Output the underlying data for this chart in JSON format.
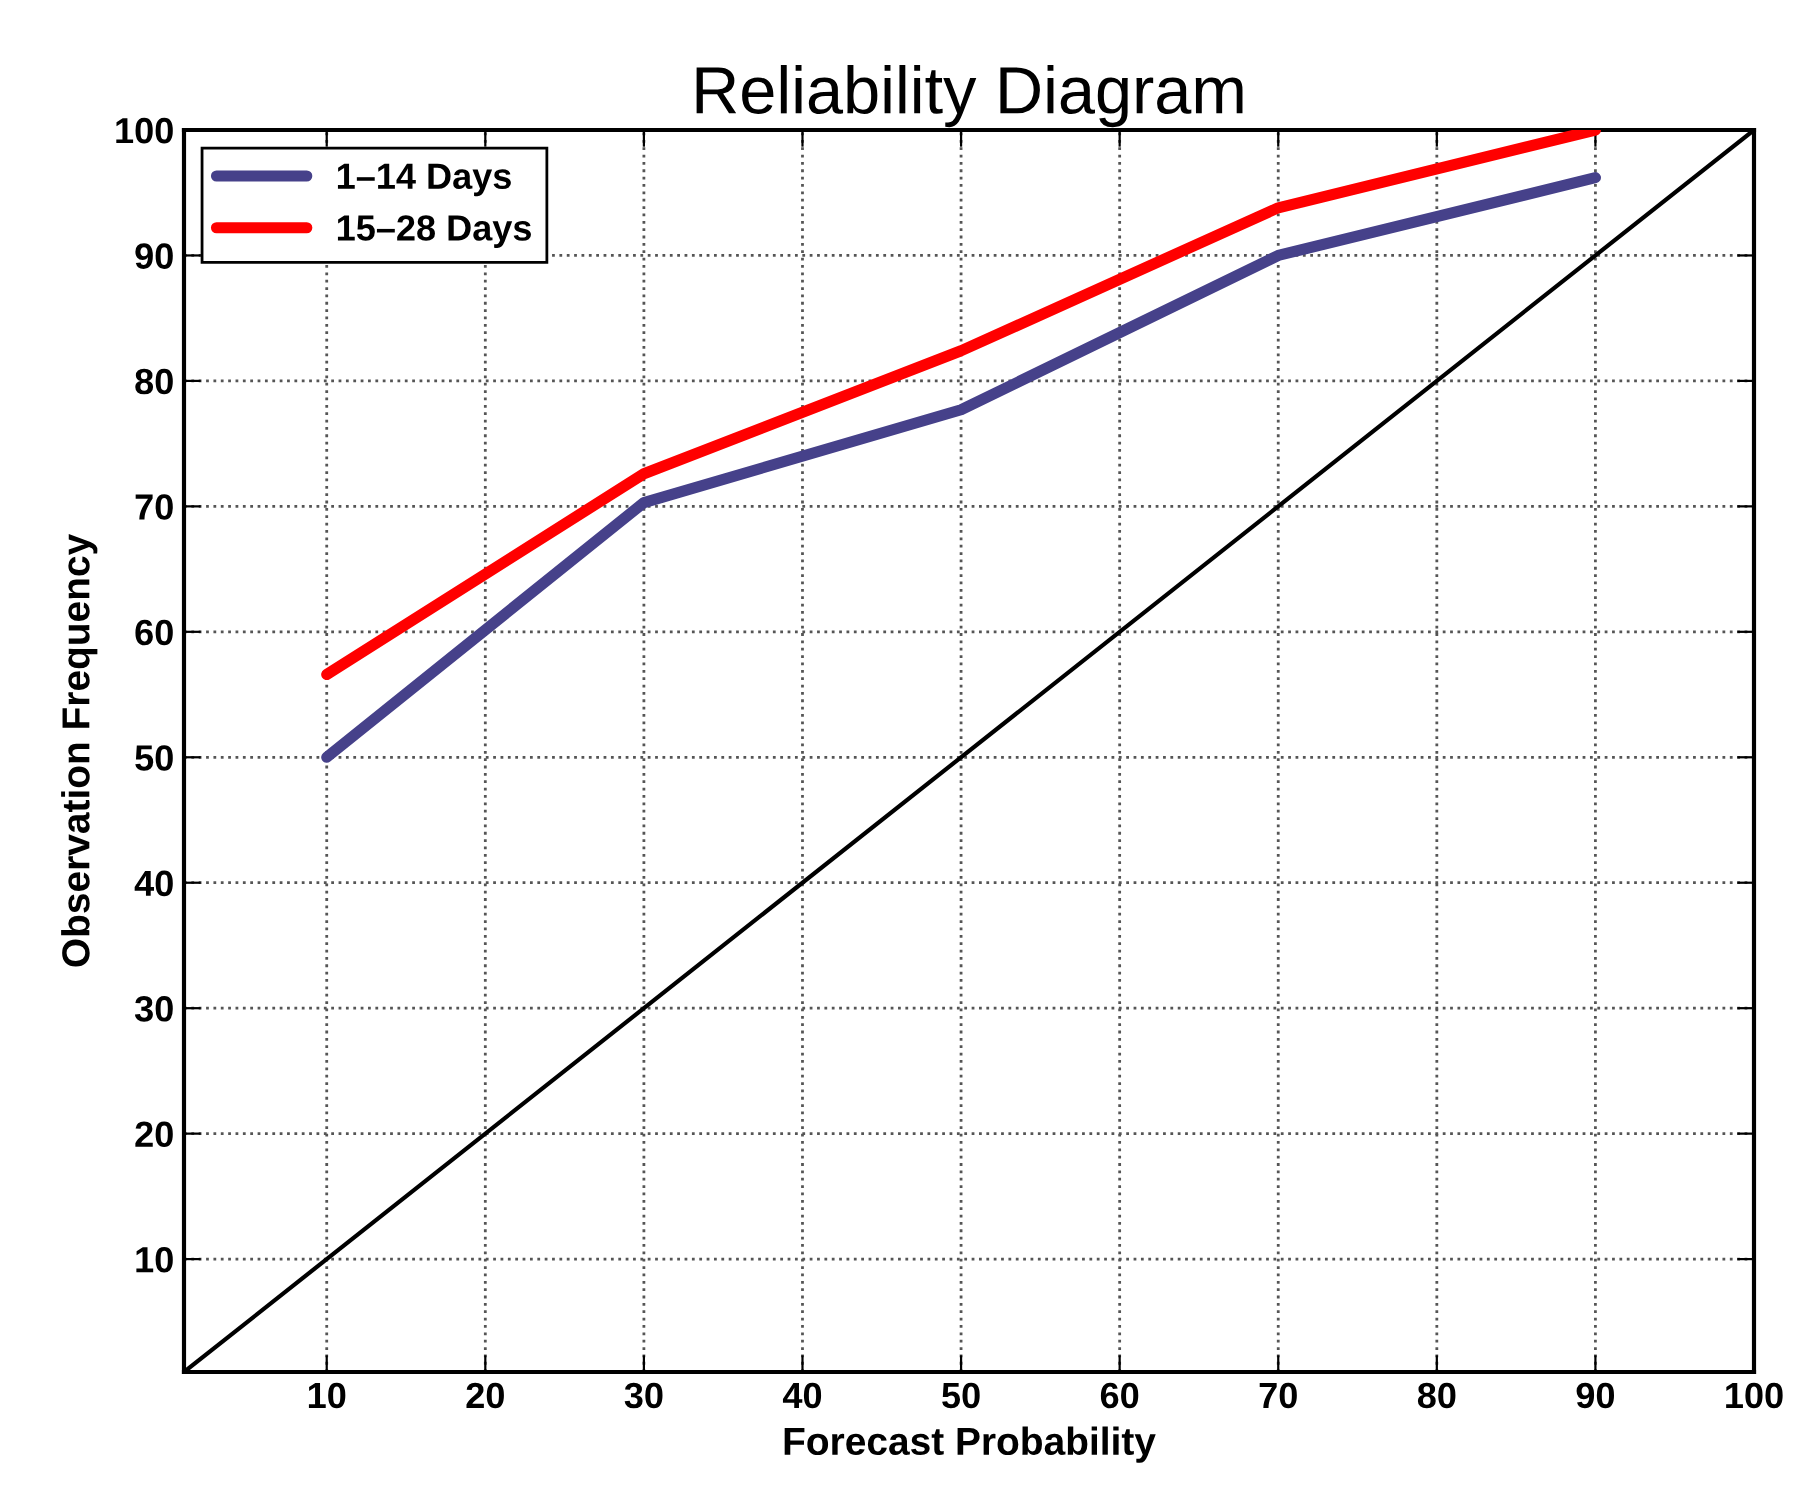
{
  "chart_data": {
    "type": "line",
    "title": "Reliability Diagram",
    "xlabel": "Forecast Probability",
    "ylabel": "Observation Frequency",
    "x": [
      10,
      30,
      50,
      70,
      90
    ],
    "series": [
      {
        "name": "1–14 Days",
        "color": "#46418a",
        "values": [
          50,
          70.3,
          77.7,
          90,
          96.2
        ]
      },
      {
        "name": "15–28 Days",
        "color": "#ff0000",
        "values": [
          56.6,
          72.6,
          82.4,
          93.8,
          100
        ]
      },
      {
        "color": "#000000",
        "x": [
          1,
          100
        ],
        "values": [
          1,
          100
        ]
      }
    ],
    "xlim": [
      1,
      100
    ],
    "ylim": [
      1,
      100
    ],
    "xticks": [
      10,
      20,
      30,
      40,
      50,
      60,
      70,
      80,
      90,
      100
    ],
    "yticks": [
      10,
      20,
      30,
      40,
      50,
      60,
      70,
      80,
      90,
      100
    ],
    "grid": true,
    "legend": "top left",
    "line_style": "solid",
    "marker": "none"
  }
}
